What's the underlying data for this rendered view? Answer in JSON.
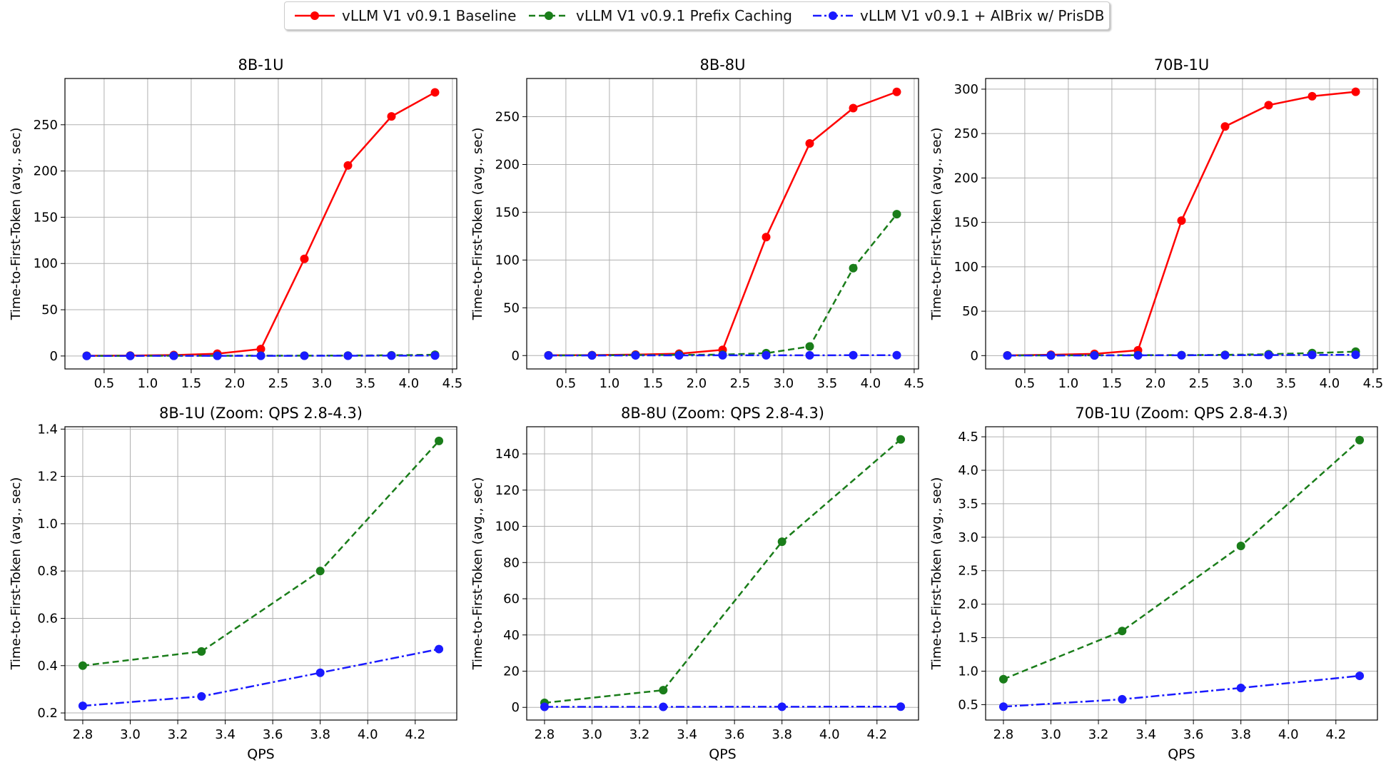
{
  "legend": {
    "items": [
      {
        "label": "vLLM V1 v0.9.1 Baseline",
        "color": "#ff0000",
        "dash": "solid"
      },
      {
        "label": "vLLM V1 v0.9.1 Prefix Caching",
        "color": "#1a7d1a",
        "dash": "dashed"
      },
      {
        "label": "vLLM V1 v0.9.1 + AIBrix w/ PrisDB",
        "color": "#1a1aff",
        "dash": "dashdot"
      }
    ]
  },
  "chart_data": [
    {
      "type": "line",
      "title": "8B-1U",
      "xlabel": "",
      "ylabel": "Time-to-First-Token (avg., sec)",
      "xlim": [
        0.05,
        4.55
      ],
      "ylim": [
        -14,
        300
      ],
      "xticks": [
        0.5,
        1.0,
        1.5,
        2.0,
        2.5,
        3.0,
        3.5,
        4.0,
        4.5
      ],
      "xtick_labels": [
        "0.5",
        "1.0",
        "1.5",
        "2.0",
        "2.5",
        "3.0",
        "3.5",
        "4.0",
        "4.5"
      ],
      "yticks": [
        0,
        50,
        100,
        150,
        200,
        250
      ],
      "ytick_labels": [
        "0",
        "50",
        "100",
        "150",
        "200",
        "250"
      ],
      "grid": true,
      "x": [
        0.3,
        0.8,
        1.3,
        1.8,
        2.3,
        2.8,
        3.3,
        3.8,
        4.3
      ],
      "series": [
        {
          "name": "vLLM V1 v0.9.1 Baseline",
          "color": "#ff0000",
          "dash": "solid",
          "values": [
            0.3,
            0.5,
            1.0,
            2.5,
            7.5,
            105,
            206,
            259,
            285
          ]
        },
        {
          "name": "vLLM V1 v0.9.1 Prefix Caching",
          "color": "#1a7d1a",
          "dash": "dashed",
          "values": [
            0.15,
            0.2,
            0.25,
            0.3,
            0.35,
            0.4,
            0.46,
            0.8,
            1.35
          ]
        },
        {
          "name": "vLLM V1 v0.9.1 + AIBrix w/ PrisDB",
          "color": "#1a1aff",
          "dash": "dashdot",
          "values": [
            0.1,
            0.12,
            0.15,
            0.18,
            0.2,
            0.23,
            0.27,
            0.37,
            0.47
          ]
        }
      ]
    },
    {
      "type": "line",
      "title": "8B-8U",
      "xlabel": "",
      "ylabel": "Time-to-First-Token (avg., sec)",
      "xlim": [
        0.05,
        4.55
      ],
      "ylim": [
        -14,
        290
      ],
      "xticks": [
        0.5,
        1.0,
        1.5,
        2.0,
        2.5,
        3.0,
        3.5,
        4.0,
        4.5
      ],
      "xtick_labels": [
        "0.5",
        "1.0",
        "1.5",
        "2.0",
        "2.5",
        "3.0",
        "3.5",
        "4.0",
        "4.5"
      ],
      "yticks": [
        0,
        50,
        100,
        150,
        200,
        250
      ],
      "ytick_labels": [
        "0",
        "50",
        "100",
        "150",
        "200",
        "250"
      ],
      "grid": true,
      "x": [
        0.3,
        0.8,
        1.3,
        1.8,
        2.3,
        2.8,
        3.3,
        3.8,
        4.3
      ],
      "series": [
        {
          "name": "vLLM V1 v0.9.1 Baseline",
          "color": "#ff0000",
          "dash": "solid",
          "values": [
            0.3,
            0.5,
            1.0,
            2.0,
            6.0,
            124,
            222,
            259,
            276
          ]
        },
        {
          "name": "vLLM V1 v0.9.1 Prefix Caching",
          "color": "#1a7d1a",
          "dash": "dashed",
          "values": [
            0.2,
            0.3,
            0.5,
            0.8,
            1.0,
            2.5,
            9.5,
            91.5,
            148
          ]
        },
        {
          "name": "vLLM V1 v0.9.1 + AIBrix w/ PrisDB",
          "color": "#1a1aff",
          "dash": "dashdot",
          "values": [
            0.1,
            0.12,
            0.15,
            0.2,
            0.25,
            0.3,
            0.3,
            0.35,
            0.4
          ]
        }
      ]
    },
    {
      "type": "line",
      "title": "70B-1U",
      "xlabel": "",
      "ylabel": "Time-to-First-Token (avg., sec)",
      "xlim": [
        0.05,
        4.55
      ],
      "ylim": [
        -15,
        312
      ],
      "xticks": [
        0.5,
        1.0,
        1.5,
        2.0,
        2.5,
        3.0,
        3.5,
        4.0,
        4.5
      ],
      "xtick_labels": [
        "0.5",
        "1.0",
        "1.5",
        "2.0",
        "2.5",
        "3.0",
        "3.5",
        "4.0",
        "4.5"
      ],
      "yticks": [
        0,
        50,
        100,
        150,
        200,
        250,
        300
      ],
      "ytick_labels": [
        "0",
        "50",
        "100",
        "150",
        "200",
        "250",
        "300"
      ],
      "grid": true,
      "x": [
        0.3,
        0.8,
        1.3,
        1.8,
        2.3,
        2.8,
        3.3,
        3.8,
        4.3
      ],
      "series": [
        {
          "name": "vLLM V1 v0.9.1 Baseline",
          "color": "#ff0000",
          "dash": "solid",
          "values": [
            0.3,
            1.0,
            2.0,
            6.0,
            152,
            258,
            282,
            292,
            297
          ]
        },
        {
          "name": "vLLM V1 v0.9.1 Prefix Caching",
          "color": "#1a7d1a",
          "dash": "dashed",
          "values": [
            0.2,
            0.3,
            0.4,
            0.5,
            0.6,
            0.88,
            1.6,
            2.87,
            4.45
          ]
        },
        {
          "name": "vLLM V1 v0.9.1 + AIBrix w/ PrisDB",
          "color": "#1a1aff",
          "dash": "dashdot",
          "values": [
            0.1,
            0.15,
            0.2,
            0.3,
            0.4,
            0.47,
            0.58,
            0.75,
            0.93
          ]
        }
      ]
    },
    {
      "type": "line",
      "title": "8B-1U (Zoom: QPS 2.8-4.3)",
      "xlabel": "QPS",
      "ylabel": "Time-to-First-Token (avg., sec)",
      "xlim": [
        2.725,
        4.375
      ],
      "ylim": [
        0.17,
        1.41
      ],
      "xticks": [
        2.8,
        3.0,
        3.2,
        3.4,
        3.6,
        3.8,
        4.0,
        4.2
      ],
      "xtick_labels": [
        "2.8",
        "3.0",
        "3.2",
        "3.4",
        "3.6",
        "3.8",
        "4.0",
        "4.2"
      ],
      "yticks": [
        0.2,
        0.4,
        0.6,
        0.8,
        1.0,
        1.2,
        1.4
      ],
      "ytick_labels": [
        "0.2",
        "0.4",
        "0.6",
        "0.8",
        "1.0",
        "1.2",
        "1.4"
      ],
      "grid": true,
      "x": [
        2.8,
        3.3,
        3.8,
        4.3
      ],
      "series": [
        {
          "name": "vLLM V1 v0.9.1 Prefix Caching",
          "color": "#1a7d1a",
          "dash": "dashed",
          "values": [
            0.4,
            0.46,
            0.8,
            1.35
          ]
        },
        {
          "name": "vLLM V1 v0.9.1 + AIBrix w/ PrisDB",
          "color": "#1a1aff",
          "dash": "dashdot",
          "values": [
            0.23,
            0.27,
            0.37,
            0.47
          ]
        }
      ]
    },
    {
      "type": "line",
      "title": "8B-8U (Zoom: QPS 2.8-4.3)",
      "xlabel": "QPS",
      "ylabel": "Time-to-First-Token (avg., sec)",
      "xlim": [
        2.725,
        4.375
      ],
      "ylim": [
        -7,
        155
      ],
      "xticks": [
        2.8,
        3.0,
        3.2,
        3.4,
        3.6,
        3.8,
        4.0,
        4.2
      ],
      "xtick_labels": [
        "2.8",
        "3.0",
        "3.2",
        "3.4",
        "3.6",
        "3.8",
        "4.0",
        "4.2"
      ],
      "yticks": [
        0,
        20,
        40,
        60,
        80,
        100,
        120,
        140
      ],
      "ytick_labels": [
        "0",
        "20",
        "40",
        "60",
        "80",
        "100",
        "120",
        "140"
      ],
      "grid": true,
      "x": [
        2.8,
        3.3,
        3.8,
        4.3
      ],
      "series": [
        {
          "name": "vLLM V1 v0.9.1 Prefix Caching",
          "color": "#1a7d1a",
          "dash": "dashed",
          "values": [
            2.5,
            9.5,
            91.5,
            148
          ]
        },
        {
          "name": "vLLM V1 v0.9.1 + AIBrix w/ PrisDB",
          "color": "#1a1aff",
          "dash": "dashdot",
          "values": [
            0.3,
            0.3,
            0.35,
            0.4
          ]
        }
      ]
    },
    {
      "type": "line",
      "title": "70B-1U (Zoom: QPS 2.8-4.3)",
      "xlabel": "QPS",
      "ylabel": "Time-to-First-Token (avg., sec)",
      "xlim": [
        2.725,
        4.375
      ],
      "ylim": [
        0.27,
        4.65
      ],
      "xticks": [
        2.8,
        3.0,
        3.2,
        3.4,
        3.6,
        3.8,
        4.0,
        4.2
      ],
      "xtick_labels": [
        "2.8",
        "3.0",
        "3.2",
        "3.4",
        "3.6",
        "3.8",
        "4.0",
        "4.2"
      ],
      "yticks": [
        0.5,
        1.0,
        1.5,
        2.0,
        2.5,
        3.0,
        3.5,
        4.0,
        4.5
      ],
      "ytick_labels": [
        "0.5",
        "1.0",
        "1.5",
        "2.0",
        "2.5",
        "3.0",
        "3.5",
        "4.0",
        "4.5"
      ],
      "grid": true,
      "x": [
        2.8,
        3.3,
        3.8,
        4.3
      ],
      "series": [
        {
          "name": "vLLM V1 v0.9.1 Prefix Caching",
          "color": "#1a7d1a",
          "dash": "dashed",
          "values": [
            0.88,
            1.6,
            2.87,
            4.45
          ]
        },
        {
          "name": "vLLM V1 v0.9.1 + AIBrix w/ PrisDB",
          "color": "#1a1aff",
          "dash": "dashdot",
          "values": [
            0.47,
            0.58,
            0.75,
            0.93
          ]
        }
      ]
    }
  ]
}
